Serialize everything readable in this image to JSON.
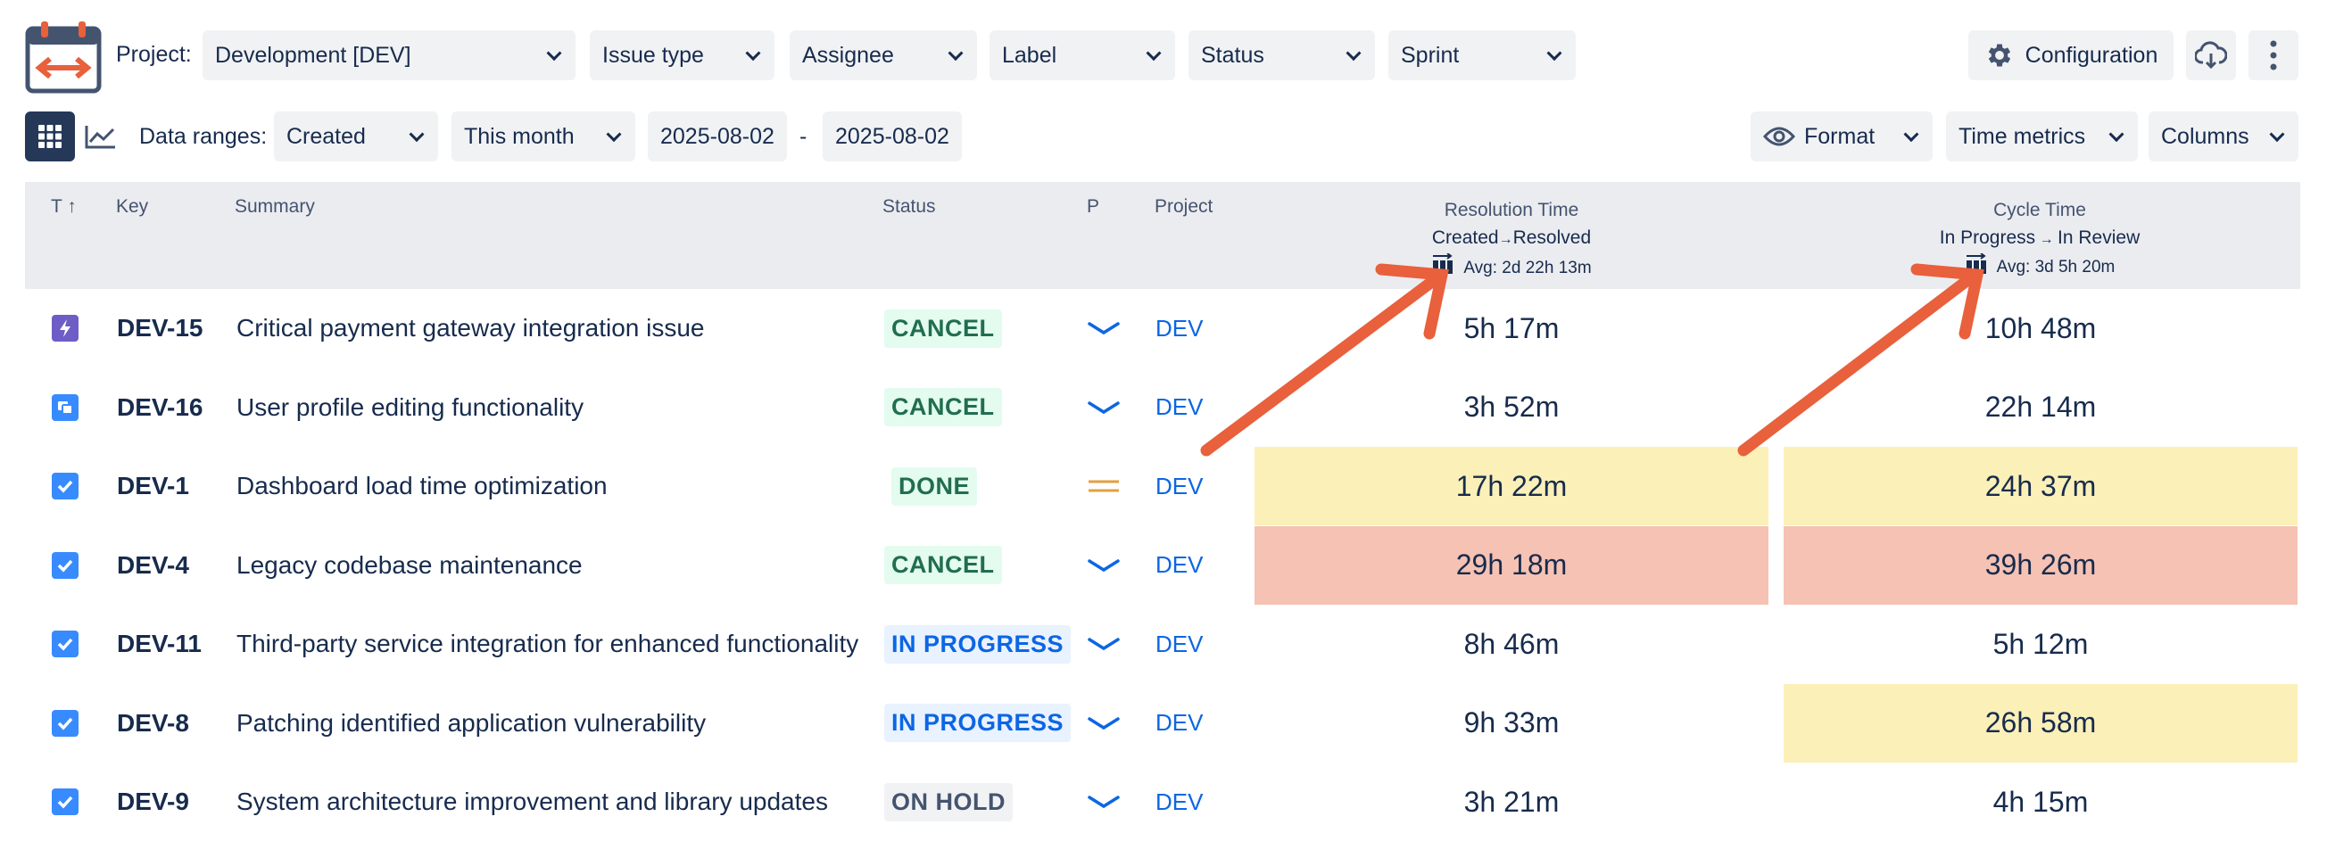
{
  "toolbar": {
    "project_label": "Project:",
    "project_value": "Development [DEV]",
    "filters": [
      "Issue type",
      "Assignee",
      "Label",
      "Status",
      "Sprint"
    ],
    "configuration_label": "Configuration",
    "data_ranges_label": "Data ranges:",
    "range_field": "Created",
    "range_preset": "This month",
    "date_from": "2025-08-02",
    "date_sep": "-",
    "date_to": "2025-08-02",
    "format_label": "Format",
    "time_metrics_label": "Time metrics",
    "columns_label": "Columns"
  },
  "table": {
    "headers": {
      "type": "T",
      "key": "Key",
      "summary": "Summary",
      "status": "Status",
      "priority": "P",
      "project": "Project"
    },
    "resolution": {
      "title": "Resolution Time",
      "from": "Created",
      "to": "Resolved",
      "avg": "Avg: 2d 22h 13m"
    },
    "cycle": {
      "title": "Cycle Time",
      "from": "In Progress",
      "to": "In Review",
      "avg": "Avg: 3d 5h 20m"
    },
    "rows": [
      {
        "type": "bolt",
        "key": "DEV-15",
        "summary": "Critical payment gateway integration issue",
        "status": "CANCEL",
        "status_color": "green",
        "priority": "low",
        "project": "DEV",
        "resolution": "5h 17m",
        "resolution_hl": "none",
        "cycle": "10h 48m",
        "cycle_hl": "none"
      },
      {
        "type": "story",
        "key": "DEV-16",
        "summary": "User profile editing functionality",
        "status": "CANCEL",
        "status_color": "green",
        "priority": "low",
        "project": "DEV",
        "resolution": "3h 52m",
        "resolution_hl": "none",
        "cycle": "22h 14m",
        "cycle_hl": "none"
      },
      {
        "type": "task",
        "key": "DEV-1",
        "summary": "Dashboard load time optimization",
        "status": "DONE",
        "status_color": "green",
        "priority": "medium",
        "project": "DEV",
        "resolution": "17h 22m",
        "resolution_hl": "yellow",
        "cycle": "24h 37m",
        "cycle_hl": "yellow"
      },
      {
        "type": "task",
        "key": "DEV-4",
        "summary": "Legacy codebase maintenance",
        "status": "CANCEL",
        "status_color": "green",
        "priority": "low",
        "project": "DEV",
        "resolution": "29h 18m",
        "resolution_hl": "red",
        "cycle": "39h 26m",
        "cycle_hl": "red"
      },
      {
        "type": "task",
        "key": "DEV-11",
        "summary": "Third-party service integration for enhanced functionality",
        "status": "IN PROGRESS",
        "status_color": "blue",
        "priority": "low",
        "project": "DEV",
        "resolution": "8h 46m",
        "resolution_hl": "none",
        "cycle": "5h 12m",
        "cycle_hl": "none"
      },
      {
        "type": "task",
        "key": "DEV-8",
        "summary": "Patching identified application vulnerability",
        "status": "IN PROGRESS",
        "status_color": "blue",
        "priority": "low",
        "project": "DEV",
        "resolution": "9h 33m",
        "resolution_hl": "none",
        "cycle": "26h 58m",
        "cycle_hl": "yellow"
      },
      {
        "type": "task",
        "key": "DEV-9",
        "summary": "System architecture improvement and library updates",
        "status": "ON HOLD",
        "status_color": "gray",
        "priority": "low",
        "project": "DEV",
        "resolution": "3h 21m",
        "resolution_hl": "none",
        "cycle": "4h 15m",
        "cycle_hl": "none"
      }
    ]
  },
  "colors": {
    "accent_arrow": "#e8603c",
    "highlight_yellow": "#fbf0b8",
    "highlight_red": "#f5c2b3",
    "link_blue": "#0c66e4",
    "priority_low": "#0c66e4",
    "priority_medium": "#e2a03f"
  }
}
